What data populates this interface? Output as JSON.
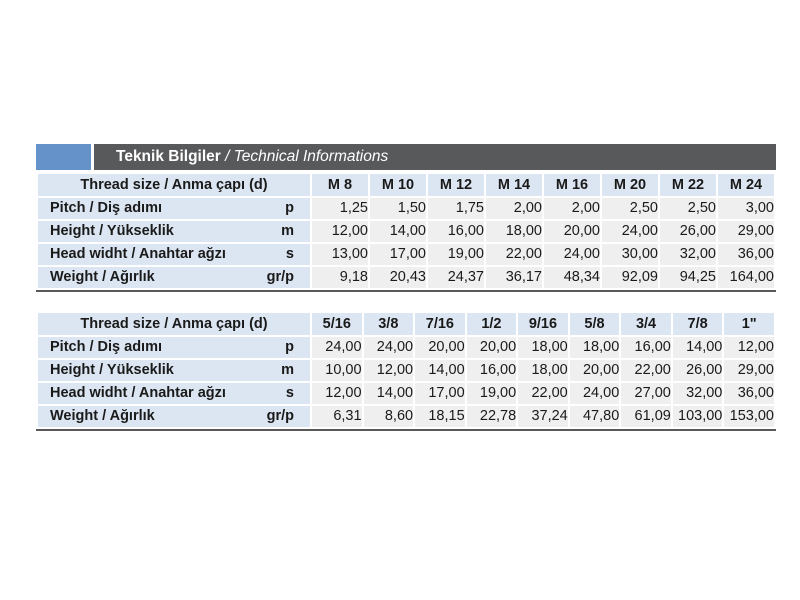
{
  "title_bar": {
    "title_bold": "Teknik Bilgiler",
    "title_italic": " / Technical Informations",
    "bar_color": "#58595b",
    "accent_color": "#6592c8",
    "text_color": "#ffffff"
  },
  "colors": {
    "header_row_bg": "#dce6f2",
    "label_column_bg": "#dce6f2",
    "data_cell_bg": "#efefef",
    "table_text": "#1a1a1a",
    "bottom_rule": "#595959"
  },
  "tables": [
    {
      "id": "metric-thread-table",
      "header_label": "Thread size / Anma çapı (d)",
      "columns": [
        "M 8",
        "M 10",
        "M 12",
        "M 14",
        "M 16",
        "M 20",
        "M 22",
        "M 24"
      ],
      "rows": [
        {
          "label": "Pitch / Diş adımı",
          "param": "p",
          "values": [
            "1,25",
            "1,50",
            "1,75",
            "2,00",
            "2,00",
            "2,50",
            "2,50",
            "3,00"
          ]
        },
        {
          "label": "Height / Yükseklik",
          "param": "m",
          "values": [
            "12,00",
            "14,00",
            "16,00",
            "18,00",
            "20,00",
            "24,00",
            "26,00",
            "29,00"
          ]
        },
        {
          "label": "Head widht / Anahtar ağzı",
          "param": "s",
          "values": [
            "13,00",
            "17,00",
            "19,00",
            "22,00",
            "24,00",
            "30,00",
            "32,00",
            "36,00"
          ]
        },
        {
          "label": "Weight / Ağırlık",
          "param": "gr/p",
          "values": [
            "9,18",
            "20,43",
            "24,37",
            "36,17",
            "48,34",
            "92,09",
            "94,25",
            "164,00"
          ]
        }
      ]
    },
    {
      "id": "imperial-thread-table",
      "header_label": "Thread size / Anma çapı (d)",
      "columns": [
        "5/16",
        "3/8",
        "7/16",
        "1/2",
        "9/16",
        "5/8",
        "3/4",
        "7/8",
        "1\""
      ],
      "rows": [
        {
          "label": "Pitch / Diş adımı",
          "param": "p",
          "values": [
            "24,00",
            "24,00",
            "20,00",
            "20,00",
            "18,00",
            "18,00",
            "16,00",
            "14,00",
            "12,00"
          ]
        },
        {
          "label": "Height / Yükseklik",
          "param": "m",
          "values": [
            "10,00",
            "12,00",
            "14,00",
            "16,00",
            "18,00",
            "20,00",
            "22,00",
            "26,00",
            "29,00"
          ]
        },
        {
          "label": "Head widht / Anahtar ağzı",
          "param": "s",
          "values": [
            "12,00",
            "14,00",
            "17,00",
            "19,00",
            "22,00",
            "24,00",
            "27,00",
            "32,00",
            "36,00"
          ]
        },
        {
          "label": "Weight / Ağırlık",
          "param": "gr/p",
          "values": [
            "6,31",
            "8,60",
            "18,15",
            "22,78",
            "37,24",
            "47,80",
            "61,09",
            "103,00",
            "153,00"
          ]
        }
      ]
    }
  ]
}
